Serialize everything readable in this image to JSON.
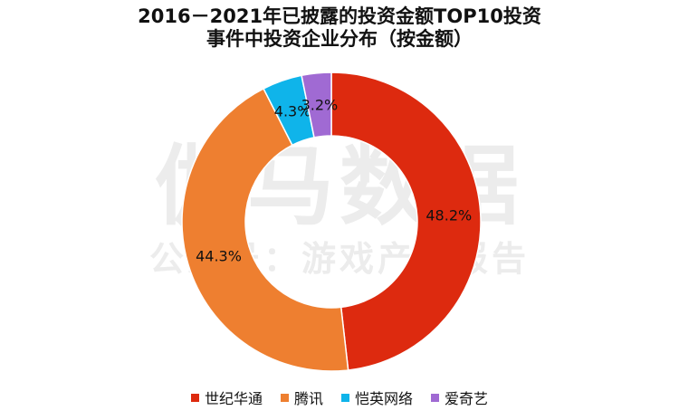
{
  "chart_data": {
    "type": "pie",
    "variant": "donut",
    "title_lines": [
      "2016－2021年已披露的投资金额TOP10投资",
      "事件中投资企业分布（按金额）"
    ],
    "slices": [
      {
        "label": "世纪华通",
        "value": 48.2,
        "value_label": "48.2%",
        "color": "#dd2a0f"
      },
      {
        "label": "腾讯",
        "value": 44.3,
        "value_label": "44.3%",
        "color": "#ee7f30"
      },
      {
        "label": "恺英网络",
        "value": 4.3,
        "value_label": "4.3%",
        "color": "#0fb4ea"
      },
      {
        "label": "爱奇艺",
        "value": 3.2,
        "value_label": "3.2%",
        "color": "#a06ad3"
      }
    ],
    "legend_position": "bottom"
  },
  "watermark": {
    "line1": "伽马数据",
    "line2": "公众号：游戏产业报告"
  }
}
